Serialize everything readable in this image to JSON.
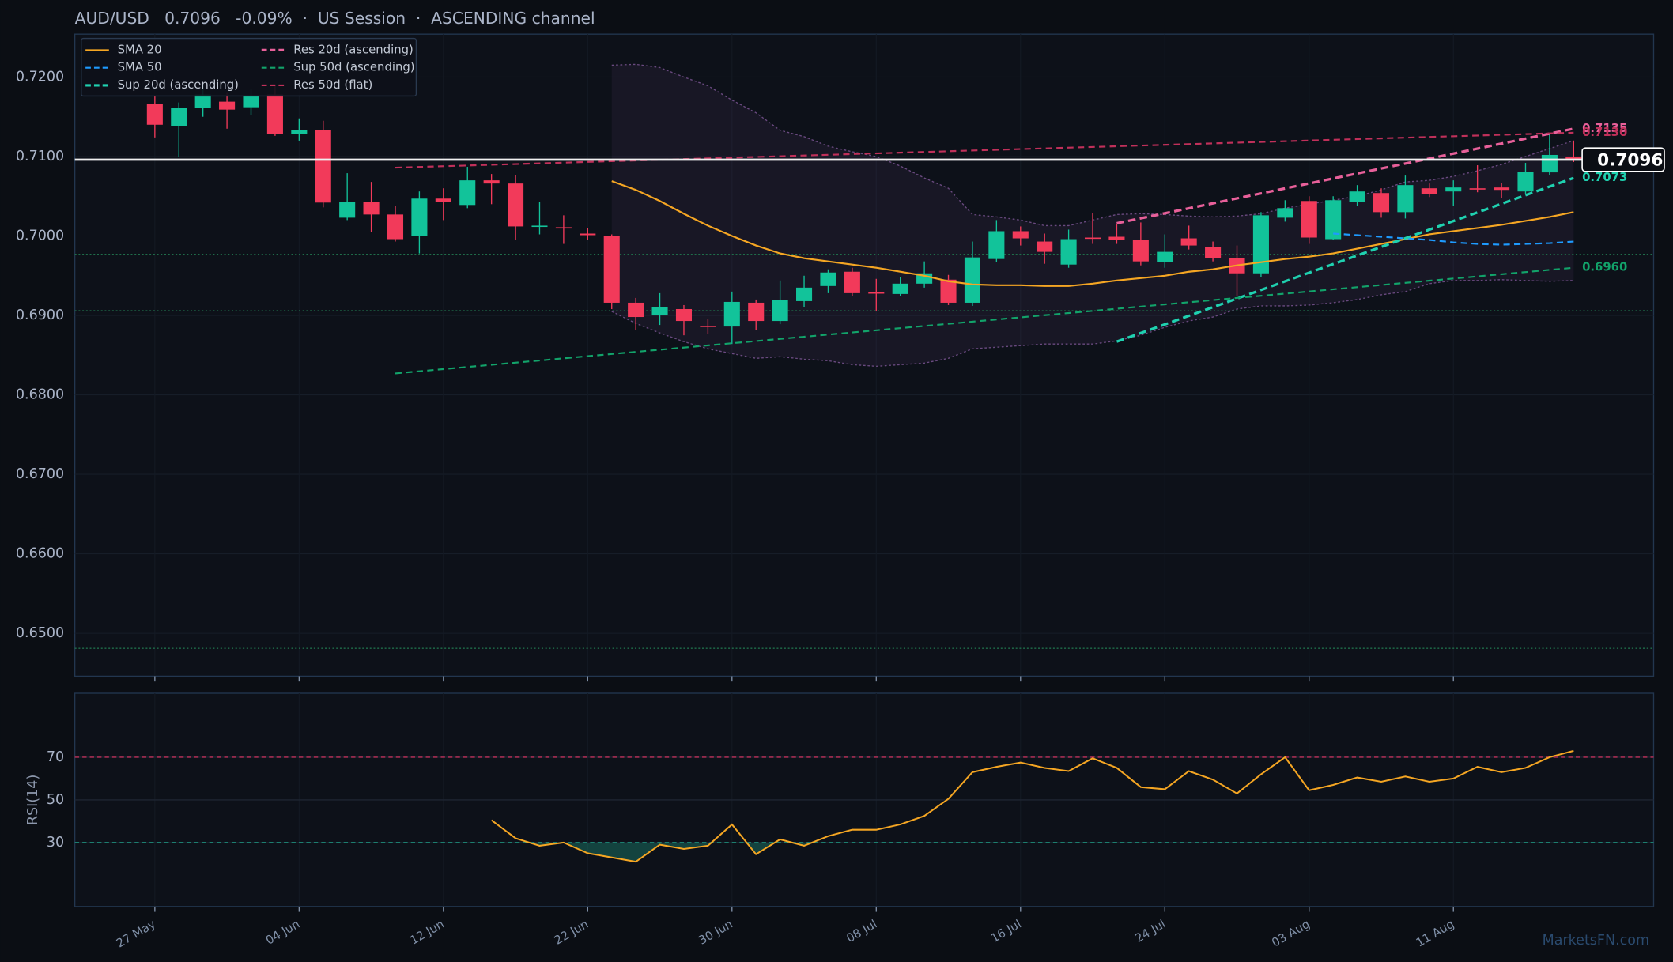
{
  "chart_data": [
    {
      "type": "candlestick",
      "title": "AUD/USD   0.7096   -0.09%  ·  US Session  ·  ASCENDING channel",
      "categories": [
        "27 May",
        null,
        null,
        null,
        null,
        null,
        "04 Jun",
        null,
        null,
        null,
        null,
        null,
        "12 Jun",
        null,
        null,
        null,
        null,
        null,
        "22 Jun",
        null,
        null,
        null,
        null,
        null,
        "30 Jun",
        null,
        null,
        null,
        null,
        null,
        "08 Jul",
        null,
        null,
        null,
        null,
        null,
        "16 Jul",
        null,
        null,
        null,
        null,
        null,
        "24 Jul",
        null,
        null,
        null,
        null,
        null,
        "03 Aug",
        null,
        null,
        null,
        null,
        null,
        "11 Aug",
        null,
        null,
        null,
        null,
        null
      ],
      "candles": {
        "open": [
          0.7166,
          0.7138,
          0.7161,
          0.7169,
          0.7162,
          0.7178,
          0.7128,
          0.7133,
          0.7023,
          0.7043,
          0.7027,
          0.7,
          0.7047,
          0.7039,
          0.707,
          0.7066,
          0.7012,
          0.7011,
          0.7003,
          0.7,
          0.6916,
          0.69,
          0.6908,
          0.6887,
          0.6886,
          0.6916,
          0.6893,
          0.6918,
          0.6937,
          0.6955,
          0.6929,
          0.6927,
          0.694,
          0.6945,
          0.6916,
          0.6971,
          0.7006,
          0.6993,
          0.6964,
          0.6998,
          0.6999,
          0.6995,
          0.6967,
          0.6997,
          0.6986,
          0.6972,
          0.6953,
          0.7023,
          0.7044,
          0.6996,
          0.7043,
          0.7054,
          0.703,
          0.706,
          0.7056,
          0.706,
          0.7061,
          0.7056,
          0.708,
          0.71
        ],
        "high": [
          0.7176,
          0.7168,
          0.719,
          0.718,
          0.7185,
          0.719,
          0.7148,
          0.7145,
          0.7079,
          0.7068,
          0.7038,
          0.7056,
          0.706,
          0.7087,
          0.7078,
          0.7077,
          0.7043,
          0.7026,
          0.701,
          0.7002,
          0.6922,
          0.6928,
          0.6913,
          0.6895,
          0.693,
          0.692,
          0.6944,
          0.695,
          0.6958,
          0.696,
          0.6946,
          0.6948,
          0.6968,
          0.6951,
          0.6993,
          0.702,
          0.7012,
          0.7003,
          0.7008,
          0.7029,
          0.7015,
          0.7017,
          0.7002,
          0.7013,
          0.6993,
          0.6988,
          0.703,
          0.7045,
          0.705,
          0.705,
          0.7064,
          0.706,
          0.7076,
          0.7066,
          0.707,
          0.7089,
          0.7067,
          0.7092,
          0.713,
          0.712
        ],
        "low": [
          0.7124,
          0.71,
          0.715,
          0.7135,
          0.7152,
          0.7126,
          0.712,
          0.7036,
          0.702,
          0.7005,
          0.6993,
          0.6978,
          0.702,
          0.7035,
          0.704,
          0.6995,
          0.7002,
          0.699,
          0.6995,
          0.6908,
          0.6882,
          0.6888,
          0.6875,
          0.6877,
          0.6864,
          0.6882,
          0.6889,
          0.691,
          0.6928,
          0.6924,
          0.6905,
          0.6924,
          0.6935,
          0.6913,
          0.6912,
          0.6967,
          0.6988,
          0.6965,
          0.696,
          0.699,
          0.699,
          0.6963,
          0.696,
          0.6983,
          0.6968,
          0.6924,
          0.6948,
          0.7018,
          0.699,
          0.6995,
          0.7038,
          0.7023,
          0.7022,
          0.7049,
          0.7038,
          0.7055,
          0.7048,
          0.7053,
          0.7077,
          0.7093
        ],
        "close": [
          0.714,
          0.7161,
          0.7178,
          0.7159,
          0.7176,
          0.7128,
          0.7133,
          0.7042,
          0.7043,
          0.7027,
          0.6996,
          0.7047,
          0.7043,
          0.707,
          0.7066,
          0.7012,
          0.7013,
          0.701,
          0.7001,
          0.6916,
          0.6898,
          0.691,
          0.6893,
          0.6886,
          0.6917,
          0.6893,
          0.6919,
          0.6935,
          0.6954,
          0.6928,
          0.6928,
          0.694,
          0.6953,
          0.6916,
          0.6973,
          0.7006,
          0.6997,
          0.698,
          0.6996,
          0.6997,
          0.6995,
          0.6968,
          0.698,
          0.6988,
          0.6972,
          0.6953,
          0.7026,
          0.7035,
          0.6998,
          0.7045,
          0.7056,
          0.703,
          0.7064,
          0.7053,
          0.7061,
          0.7059,
          0.7058,
          0.7081,
          0.7102,
          0.7096
        ]
      },
      "up_color": "#12c39a",
      "down_color": "#f23a5a",
      "series": [
        {
          "name": "SMA 20",
          "color": "#f5a623",
          "dashed": false,
          "thick": false,
          "values": [
            null,
            null,
            null,
            null,
            null,
            null,
            null,
            null,
            null,
            null,
            null,
            null,
            null,
            null,
            null,
            null,
            null,
            null,
            null,
            0.7069,
            0.7058,
            0.7044,
            0.7028,
            0.7013,
            0.7,
            0.6988,
            0.6978,
            0.6972,
            0.6968,
            0.6964,
            0.696,
            0.6955,
            0.695,
            0.6943,
            0.6939,
            0.6938,
            0.6938,
            0.6937,
            0.6937,
            0.694,
            0.6944,
            0.6947,
            0.695,
            0.6955,
            0.6958,
            0.6963,
            0.6967,
            0.6971,
            0.6974,
            0.6978,
            0.6984,
            0.699,
            0.6996,
            0.7002,
            0.7006,
            0.701,
            0.7014,
            0.7019,
            0.7024,
            0.703
          ]
        },
        {
          "name": "SMA 50",
          "color": "#1e9bff",
          "dashed": true,
          "thick": false,
          "values": [
            null,
            null,
            null,
            null,
            null,
            null,
            null,
            null,
            null,
            null,
            null,
            null,
            null,
            null,
            null,
            null,
            null,
            null,
            null,
            null,
            null,
            null,
            null,
            null,
            null,
            null,
            null,
            null,
            null,
            null,
            null,
            null,
            null,
            null,
            null,
            null,
            null,
            null,
            null,
            null,
            null,
            null,
            null,
            null,
            null,
            null,
            null,
            null,
            null,
            0.7003,
            0.7001,
            0.6999,
            0.6997,
            0.6995,
            0.6992,
            0.699,
            0.6989,
            0.699,
            0.6991,
            0.6993
          ]
        },
        {
          "name": "Sup 20d (ascending)",
          "color": "#1fd1b0",
          "dashed": true,
          "thick": true,
          "x": [
            40,
            59
          ],
          "values": [
            0.6867,
            0.7073
          ]
        },
        {
          "name": "Res 20d (ascending)",
          "color": "#e8609a",
          "dashed": true,
          "thick": true,
          "x": [
            40,
            59
          ],
          "values": [
            0.7016,
            0.7135
          ]
        },
        {
          "name": "Sup 50d (ascending)",
          "color": "#12a36a",
          "dashed": true,
          "thick": false,
          "x": [
            10,
            59
          ],
          "values": [
            0.6827,
            0.696
          ]
        },
        {
          "name": "Res 50d (flat)",
          "color": "#c0305a",
          "dashed": true,
          "thick": false,
          "x": [
            10,
            59
          ],
          "values": [
            0.7086,
            0.713
          ]
        }
      ],
      "envelope": {
        "color": "#6a4a80",
        "upper": [
          null,
          null,
          null,
          null,
          null,
          null,
          null,
          null,
          null,
          null,
          null,
          null,
          null,
          null,
          null,
          null,
          null,
          null,
          null,
          0.7215,
          0.7216,
          0.7212,
          0.72,
          0.7189,
          0.7171,
          0.7155,
          0.7133,
          0.7125,
          0.7113,
          0.7106,
          0.71,
          0.7088,
          0.7073,
          0.706,
          0.7027,
          0.7024,
          0.702,
          0.7013,
          0.7013,
          0.702,
          0.7027,
          0.7028,
          0.7027,
          0.7025,
          0.7024,
          0.7025,
          0.7028,
          0.7035,
          0.704,
          0.7045,
          0.705,
          0.7058,
          0.7068,
          0.707,
          0.7075,
          0.7082,
          0.709,
          0.71,
          0.711,
          0.712
        ],
        "lower": [
          null,
          null,
          null,
          null,
          null,
          null,
          null,
          null,
          null,
          null,
          null,
          null,
          null,
          null,
          null,
          null,
          null,
          null,
          null,
          0.6905,
          0.689,
          0.6878,
          0.6867,
          0.6858,
          0.6852,
          0.6846,
          0.6848,
          0.6845,
          0.6843,
          0.6838,
          0.6836,
          0.6838,
          0.684,
          0.6846,
          0.6858,
          0.686,
          0.6862,
          0.6864,
          0.6864,
          0.6864,
          0.6868,
          0.6875,
          0.6885,
          0.6893,
          0.6898,
          0.6908,
          0.6912,
          0.6912,
          0.6913,
          0.6916,
          0.692,
          0.6926,
          0.693,
          0.694,
          0.6944,
          0.6944,
          0.6945,
          0.6944,
          0.6943,
          0.6944
        ]
      },
      "levels": [
        0.6977,
        0.6906,
        0.6481
      ],
      "level_color": "#1f6e4a",
      "last_price": {
        "value": 0.7096,
        "label": "0.7096"
      },
      "annotations": [
        {
          "label": "0.7135",
          "series": 3
        },
        {
          "label": "0.7130",
          "series": 5
        },
        {
          "label": "0.7073",
          "series": 2
        },
        {
          "label": "0.6960",
          "series": 4
        }
      ],
      "ylim": [
        0.6446,
        0.7254
      ],
      "yticks": [
        {
          "value": 0.65,
          "label": "0.6500"
        },
        {
          "value": 0.66,
          "label": "0.6600"
        },
        {
          "value": 0.67,
          "label": "0.6700"
        },
        {
          "value": 0.68,
          "label": "0.6800"
        },
        {
          "value": 0.69,
          "label": "0.6900"
        },
        {
          "value": 0.7,
          "label": "0.7000"
        },
        {
          "value": 0.71,
          "label": "0.7100"
        },
        {
          "value": 0.72,
          "label": "0.7200"
        }
      ],
      "grid": true,
      "legend": "upper left"
    },
    {
      "type": "line",
      "ylabel": "RSI(14)",
      "color": "#f5a623",
      "values": [
        null,
        null,
        null,
        null,
        null,
        null,
        null,
        null,
        null,
        null,
        null,
        null,
        null,
        null,
        40.5,
        32,
        28.5,
        30,
        25,
        23,
        21,
        29,
        27,
        28.5,
        38.5,
        24.5,
        31.5,
        28.5,
        33,
        36,
        36,
        38.5,
        42.5,
        50.5,
        63,
        65.5,
        67.5,
        65,
        63.5,
        69.5,
        65,
        56,
        55,
        63.5,
        59.5,
        53,
        62,
        70,
        54.5,
        57,
        60.5,
        58.5,
        61,
        58.5,
        60,
        65.5,
        63,
        65,
        70,
        73
      ],
      "ylim": [
        0,
        100
      ],
      "yticks": [
        30,
        50,
        70
      ],
      "overbought": 70,
      "overbought_color": "#c0305a",
      "oversold": 30,
      "oversold_color": "#1fa088",
      "grid": true
    },
    {
      "watermark": "MarketsFN.com"
    }
  ]
}
